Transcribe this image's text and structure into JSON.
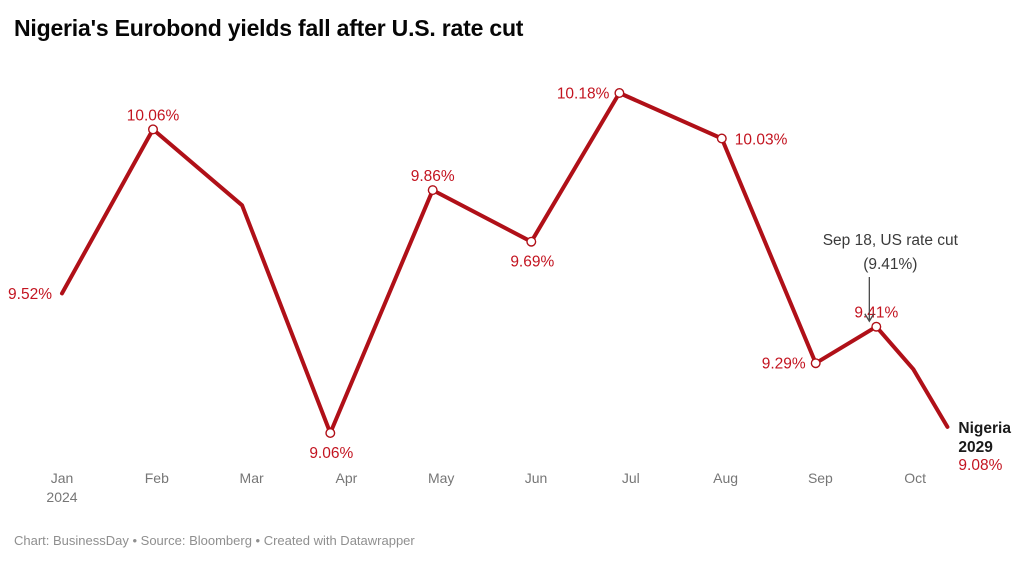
{
  "header": {
    "title": "Nigeria's Eurobond yields fall after U.S. rate cut"
  },
  "footer": {
    "text": "Chart: BusinessDay • Source: Bloomberg • Created with Datawrapper"
  },
  "colors": {
    "line": "#b01018",
    "point_label": "#c31420",
    "marker_fill": "#ffffff",
    "axis_text": "#767676",
    "annotation_text": "#3a3a3a",
    "arrow": "#4a4a4a",
    "end_label_text": "#1a1a1a",
    "title_text": "#060606",
    "footer_text": "#8f8f8f",
    "background": "#ffffff"
  },
  "chart_data": {
    "type": "line",
    "title": "Nigeria's Eurobond yields fall after U.S. rate cut",
    "series": [
      {
        "name": "Nigeria 2029",
        "unit": "%"
      }
    ],
    "grid": false,
    "legend": "none",
    "ylim": [
      8.95,
      10.35
    ],
    "x_axis": {
      "ticks": [
        {
          "m": 0,
          "label": "Jan",
          "sub": "2024"
        },
        {
          "m": 1,
          "label": "Feb"
        },
        {
          "m": 2,
          "label": "Mar"
        },
        {
          "m": 3,
          "label": "Apr"
        },
        {
          "m": 4,
          "label": "May"
        },
        {
          "m": 5,
          "label": "Jun"
        },
        {
          "m": 6,
          "label": "Jul"
        },
        {
          "m": 7,
          "label": "Aug"
        },
        {
          "m": 8,
          "label": "Sep"
        },
        {
          "m": 9,
          "label": "Oct"
        }
      ]
    },
    "points": [
      {
        "x": 0,
        "value": 9.52,
        "label": "9.52%",
        "label_pos": "left",
        "marker": false
      },
      {
        "x": 0.96,
        "value": 10.06,
        "label": "10.06%",
        "label_pos": "top",
        "marker": true
      },
      {
        "x": 1.9,
        "value": 9.81,
        "label": "",
        "label_pos": "none",
        "marker": false
      },
      {
        "x": 2.83,
        "value": 9.06,
        "label": "9.06%",
        "label_pos": "bottom",
        "marker": true
      },
      {
        "x": 3.91,
        "value": 9.86,
        "label": "9.86%",
        "label_pos": "top",
        "marker": true
      },
      {
        "x": 4.95,
        "value": 9.69,
        "label": "9.69%",
        "label_pos": "bottom",
        "marker": true
      },
      {
        "x": 5.88,
        "value": 10.18,
        "label": "10.18%",
        "label_pos": "left",
        "marker": true
      },
      {
        "x": 6.96,
        "value": 10.03,
        "label": "10.03%",
        "label_pos": "right",
        "marker": true
      },
      {
        "x": 7.95,
        "value": 9.29,
        "label": "9.29%",
        "label_pos": "left",
        "marker": true
      },
      {
        "x": 8.59,
        "value": 9.41,
        "label": "9.41%",
        "label_pos": "top",
        "marker": true
      },
      {
        "x": 8.98,
        "value": 9.27,
        "label": "",
        "label_pos": "none",
        "marker": false
      },
      {
        "x": 9.34,
        "value": 9.08,
        "label": "",
        "label_pos": "none",
        "marker": false
      }
    ],
    "annotation": {
      "text_line1": "Sep 18, US rate cut",
      "text_line2": "(9.41%)",
      "target_x": 8.59,
      "target_value": 9.41
    },
    "end_label": {
      "name_line1": "Nigeria",
      "name_line2": "2029",
      "value_label": "9.08%"
    }
  }
}
